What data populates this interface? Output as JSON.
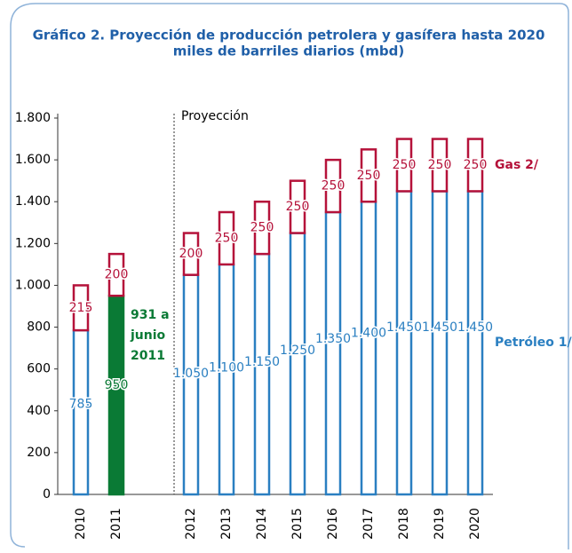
{
  "chart_data": {
    "type": "stacked_bar",
    "title": "Gráfico 2. Proyección de producción petrolera y gasífera hasta 2020",
    "subtitle": "miles de barriles diarios (mbd)",
    "categories": [
      "2010",
      "2011",
      "2012",
      "2013",
      "2014",
      "2015",
      "2016",
      "2017",
      "2018",
      "2019",
      "2020"
    ],
    "series": [
      {
        "name": "Petróleo 1/",
        "color": "#2a7fc1",
        "fills": [
          null,
          "#0a7a35",
          null,
          null,
          null,
          null,
          null,
          null,
          null,
          null,
          null
        ],
        "values": [
          785,
          950,
          1050,
          1100,
          1150,
          1250,
          1350,
          1400,
          1450,
          1450,
          1450
        ],
        "value_labels": [
          "785",
          "950",
          "1.050",
          "1.100",
          "1.150",
          "1.250",
          "1.350",
          "1.400",
          "1.450",
          "1.450",
          "1.450"
        ]
      },
      {
        "name": "Gas 2/",
        "color": "#b5123a",
        "values": [
          215,
          200,
          200,
          250,
          250,
          250,
          250,
          250,
          250,
          250,
          250
        ]
      }
    ],
    "ylim": [
      0,
      1800
    ],
    "yticks": [
      0,
      200,
      400,
      600,
      800,
      {
        "value": 1000,
        "label": "1.000"
      },
      {
        "value": 1200,
        "label": "1.200"
      },
      {
        "value": 1400,
        "label": "1.400"
      },
      {
        "value": 1600,
        "label": "1.600"
      },
      {
        "value": 1800,
        "label": "1.800"
      }
    ],
    "annotations": {
      "projection": "Proyección",
      "note": [
        "931 a",
        "junio",
        "2011"
      ],
      "note_color": "#0a7a35"
    }
  }
}
